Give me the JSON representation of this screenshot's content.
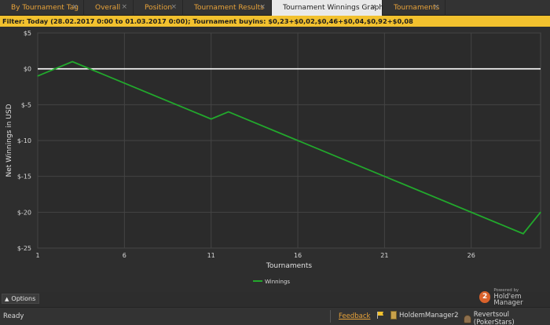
{
  "tabs": [
    {
      "label": "By Tournament Tag",
      "active": false
    },
    {
      "label": "Overall",
      "active": false
    },
    {
      "label": "Position",
      "active": false
    },
    {
      "label": "Tournament Results",
      "active": false
    },
    {
      "label": "Tournament Winnings Graph",
      "active": true
    },
    {
      "label": "Tournaments",
      "active": false
    }
  ],
  "tab_close_glyph": "×",
  "filter_text": "Filter: Today (28.02.2017 0:00 to 01.03.2017 0:00); Tournament buyins: $0,23+$0,02,$0,46+$0,04,$0,92+$0,08",
  "chart_data": {
    "type": "line",
    "title": "",
    "xlabel": "Tournaments",
    "ylabel": "Net Winnings in USD",
    "xlim": [
      1,
      30
    ],
    "ylim": [
      -25,
      5
    ],
    "x_ticks": [
      1,
      6,
      11,
      16,
      21,
      26
    ],
    "y_ticks": [
      5,
      0,
      -5,
      -10,
      -15,
      -20,
      -25
    ],
    "y_tick_labels": [
      "$5",
      "$0",
      "$-5",
      "$-10",
      "$-15",
      "$-20",
      "$-25"
    ],
    "grid": true,
    "legend_position": "bottom-center",
    "zero_line": true,
    "series": [
      {
        "name": "Winnings",
        "color": "#22a82c",
        "x": [
          1,
          3,
          11,
          12,
          29,
          30
        ],
        "y": [
          -1,
          1,
          -7,
          -6,
          -23,
          -20
        ]
      }
    ]
  },
  "options_label": "Options",
  "powered": {
    "small": "Powered by",
    "big": "Hold'em Manager",
    "badge": "2"
  },
  "status": {
    "ready": "Ready",
    "feedback": "Feedback",
    "app": "HoldemManager2",
    "player": "Revertsoul (PokerStars)"
  },
  "colors": {
    "accent": "#e8a33a",
    "filter_bg": "#f2c12e",
    "plot_bg": "#2d2d2d",
    "zero_line": "#ffffff"
  }
}
